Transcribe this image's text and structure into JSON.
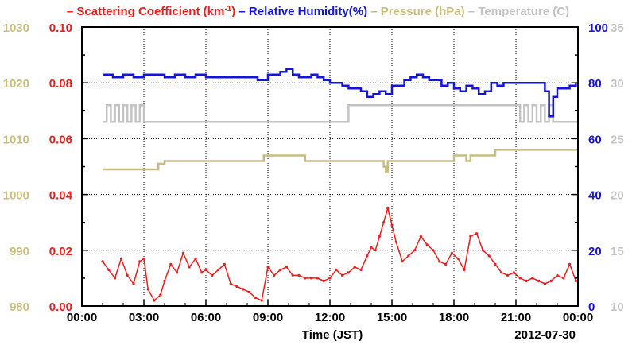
{
  "chart_data": {
    "type": "line",
    "xlabel": "Time (JST)",
    "date_label": "2012-07-30",
    "x_ticks": [
      "00:00",
      "03:00",
      "06:00",
      "09:00",
      "12:00",
      "15:00",
      "18:00",
      "21:00",
      "00:00"
    ],
    "x_range_hours": [
      0,
      24
    ],
    "grid": true,
    "legend_position": "top",
    "legend": [
      {
        "dash": "–",
        "label": "Scattering Coefficient (km",
        "sup": "-1",
        "suffix": ")",
        "color": "#ee1c1c"
      },
      {
        "dash": "–",
        "label": "Relative Humidity(%)",
        "color": "#1414e0"
      },
      {
        "dash": "–",
        "label": "Pressure (hPa)",
        "color": "#c8bd7f"
      },
      {
        "dash": "–",
        "label": "Temperature (̊C)",
        "color": "#c3c3c3"
      }
    ],
    "axes": {
      "pressure": {
        "side": "left-outer",
        "range": [
          980,
          1030
        ],
        "ticks": [
          "980",
          "990",
          "1000",
          "1010",
          "1020",
          "1030"
        ],
        "color": "#c8bd7f"
      },
      "scattering": {
        "side": "left-inner",
        "range": [
          0,
          0.1
        ],
        "ticks": [
          "0.00",
          "0.02",
          "0.04",
          "0.06",
          "0.08",
          "0.10"
        ],
        "color": "#ee1c1c"
      },
      "humidity": {
        "side": "right-inner",
        "range": [
          0,
          100
        ],
        "ticks": [
          "0",
          "20",
          "40",
          "60",
          "80",
          "100"
        ],
        "color": "#1414e0"
      },
      "temperature": {
        "side": "right-outer",
        "range": [
          10,
          35
        ],
        "ticks": [
          "10",
          "15",
          "20",
          "25",
          "30",
          "35"
        ],
        "color": "#c3c3c3"
      }
    },
    "series": [
      {
        "name": "Scattering Coefficient",
        "axis": "scattering",
        "color": "#ee1c1c",
        "marker": true,
        "x": [
          1.0,
          1.3,
          1.6,
          1.9,
          2.2,
          2.5,
          2.8,
          3.0,
          3.2,
          3.5,
          3.8,
          4.0,
          4.3,
          4.6,
          4.9,
          5.2,
          5.5,
          5.8,
          6.0,
          6.3,
          6.6,
          6.9,
          7.2,
          7.5,
          7.8,
          8.1,
          8.4,
          8.7,
          9.0,
          9.3,
          9.6,
          9.9,
          10.2,
          10.5,
          10.8,
          11.1,
          11.4,
          11.7,
          12.0,
          12.3,
          12.6,
          12.9,
          13.2,
          13.5,
          13.8,
          14.0,
          14.2,
          14.4,
          14.6,
          14.8,
          15.0,
          15.2,
          15.5,
          15.8,
          16.1,
          16.4,
          16.7,
          17.0,
          17.3,
          17.6,
          17.9,
          18.2,
          18.5,
          18.8,
          19.1,
          19.4,
          19.7,
          20.0,
          20.3,
          20.6,
          20.9,
          21.2,
          21.5,
          21.8,
          22.1,
          22.4,
          22.7,
          23.0,
          23.3,
          23.6,
          23.9
        ],
        "y": [
          0.016,
          0.013,
          0.01,
          0.017,
          0.011,
          0.008,
          0.016,
          0.017,
          0.006,
          0.002,
          0.004,
          0.009,
          0.015,
          0.012,
          0.019,
          0.014,
          0.017,
          0.012,
          0.013,
          0.011,
          0.013,
          0.015,
          0.008,
          0.007,
          0.006,
          0.005,
          0.003,
          0.002,
          0.014,
          0.011,
          0.013,
          0.014,
          0.011,
          0.011,
          0.01,
          0.01,
          0.01,
          0.009,
          0.01,
          0.013,
          0.011,
          0.012,
          0.014,
          0.013,
          0.018,
          0.021,
          0.02,
          0.025,
          0.03,
          0.035,
          0.029,
          0.023,
          0.016,
          0.018,
          0.02,
          0.025,
          0.022,
          0.02,
          0.016,
          0.015,
          0.019,
          0.017,
          0.013,
          0.025,
          0.026,
          0.02,
          0.018,
          0.015,
          0.012,
          0.011,
          0.012,
          0.01,
          0.009,
          0.01,
          0.009,
          0.008,
          0.009,
          0.011,
          0.01,
          0.015,
          0.009
        ]
      },
      {
        "name": "Relative Humidity",
        "axis": "humidity",
        "color": "#1414e0",
        "step": true,
        "x": [
          1.0,
          1.5,
          2.0,
          2.5,
          3.0,
          3.5,
          4.0,
          4.5,
          5.0,
          5.5,
          6.0,
          6.5,
          7.0,
          7.5,
          8.0,
          8.5,
          9.0,
          9.3,
          9.6,
          9.9,
          10.2,
          10.5,
          10.8,
          11.1,
          11.4,
          11.7,
          12.0,
          12.3,
          12.6,
          12.9,
          13.2,
          13.5,
          13.8,
          14.1,
          14.4,
          14.7,
          15.0,
          15.3,
          15.6,
          15.9,
          16.2,
          16.5,
          16.8,
          17.1,
          17.4,
          17.7,
          18.0,
          18.3,
          18.6,
          18.9,
          19.2,
          19.5,
          19.8,
          20.1,
          20.4,
          20.7,
          21.0,
          21.3,
          21.6,
          21.9,
          22.2,
          22.4,
          22.6,
          22.8,
          23.0,
          23.3,
          23.6,
          23.9
        ],
        "y": [
          83,
          82,
          83,
          82,
          83,
          83,
          82,
          83,
          82,
          83,
          82,
          82,
          82,
          82,
          82,
          81,
          83,
          83,
          84,
          85,
          83,
          82,
          82,
          83,
          82,
          81,
          80,
          80,
          79,
          78,
          78,
          77,
          75,
          76,
          77,
          76,
          79,
          79,
          81,
          82,
          83,
          82,
          81,
          81,
          79,
          80,
          78,
          77,
          79,
          78,
          76,
          77,
          80,
          79,
          80,
          80,
          80,
          80,
          80,
          80,
          80,
          77,
          68,
          75,
          78,
          78,
          79,
          80
        ]
      },
      {
        "name": "Pressure",
        "axis": "pressure",
        "color": "#c8bd7f",
        "step": true,
        "x": [
          1.0,
          3.7,
          4.0,
          8.8,
          10.8,
          14.6,
          14.7,
          14.8,
          18.0,
          18.6,
          18.8,
          20.0,
          24.0
        ],
        "y": [
          1004.5,
          1005.5,
          1006.0,
          1007.0,
          1006.0,
          1005.0,
          1004.0,
          1006.0,
          1007.0,
          1006.0,
          1007.0,
          1008.0,
          1008.0
        ]
      },
      {
        "name": "Temperature",
        "axis": "temperature",
        "color": "#c3c3c3",
        "step": true,
        "x": [
          1.0,
          1.2,
          1.4,
          1.6,
          1.8,
          2.0,
          2.2,
          2.4,
          2.6,
          2.8,
          3.0,
          4.0,
          12.9,
          14.0,
          21.2,
          21.4,
          21.6,
          21.8,
          22.0,
          22.2,
          22.4,
          22.6,
          22.8,
          23.0,
          23.5,
          24.0
        ],
        "y": [
          26.5,
          28.0,
          26.5,
          28.0,
          26.5,
          28.0,
          26.5,
          28.0,
          26.5,
          28.0,
          26.5,
          26.5,
          28.0,
          28.0,
          26.5,
          28.0,
          26.5,
          28.0,
          26.5,
          28.0,
          26.5,
          28.0,
          26.5,
          26.5,
          26.5,
          26.5
        ]
      }
    ]
  }
}
